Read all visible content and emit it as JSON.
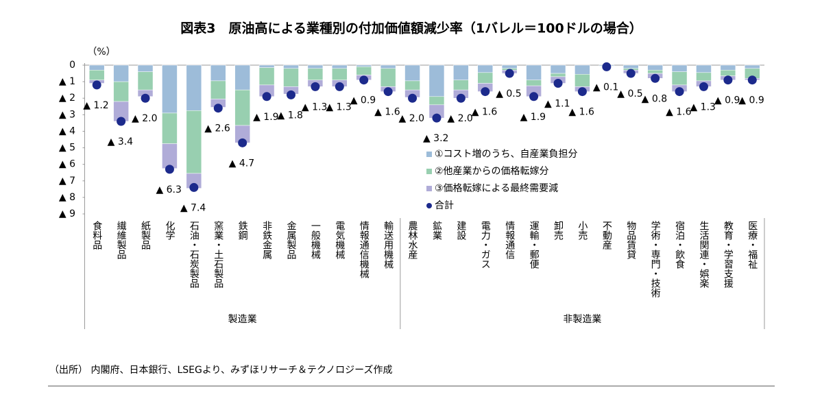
{
  "chart_data": {
    "type": "stacked_bar",
    "title": "図表3　原油高による業種別の付加価値額減少率（1バレル＝100ドルの場合）",
    "y_label": "（%）",
    "groups": [
      {
        "name": "製造業",
        "categories": [
          "食料品",
          "繊維製品",
          "紙製品",
          "化学",
          "石油・石炭製品",
          "窯業・土石製品",
          "鉄鋼",
          "非鉄金属",
          "金属製品",
          "一般機械",
          "電気機械",
          "情報通信機械",
          "輸送用機械"
        ]
      },
      {
        "name": "非製造業",
        "categories": [
          "農林水産",
          "鉱業",
          "建設",
          "電力・ガス",
          "情報通信",
          "運輸・郵便",
          "卸売",
          "小売",
          "不動産",
          "物品賃貸",
          "学術・専門・技術",
          "宿泊・飲食",
          "生活関連・娯楽",
          "教育・学習支援",
          "医療・福祉"
        ]
      }
    ],
    "series": [
      {
        "name": "①コスト増のうち、自産業負担分",
        "color": "#9dbcd9",
        "values": [
          -0.3,
          -1.0,
          -0.4,
          -2.9,
          -2.75,
          -0.95,
          -1.5,
          -0.15,
          -0.2,
          -0.2,
          -0.2,
          -0.1,
          -0.2,
          -0.95,
          -1.9,
          -0.9,
          -0.45,
          -0.2,
          -0.9,
          -0.5,
          -0.55,
          -0.05,
          -0.2,
          -0.3,
          -0.4,
          -0.45,
          -0.3,
          -0.2
        ]
      },
      {
        "name": "②他産業からの価格転嫁分",
        "color": "#98cfb0",
        "values": [
          -0.6,
          -1.2,
          -1.1,
          -1.85,
          -3.8,
          -1.1,
          -2.15,
          -1.05,
          -1.1,
          -0.7,
          -0.7,
          -0.5,
          -1.1,
          -0.55,
          -0.5,
          -0.6,
          -0.65,
          -0.1,
          -0.35,
          -0.2,
          -0.75,
          -0.03,
          -0.1,
          -0.2,
          -0.8,
          -0.5,
          -0.35,
          -0.6
        ]
      },
      {
        "name": "③価格転嫁による最終需要減",
        "color": "#b0acd8",
        "values": [
          -0.2,
          -1.2,
          -0.4,
          -1.5,
          -0.9,
          -0.5,
          -1.05,
          -0.7,
          -0.45,
          -0.4,
          -0.4,
          -0.3,
          -0.3,
          -0.45,
          -0.8,
          -0.5,
          -0.5,
          -0.2,
          -0.65,
          -0.4,
          -0.3,
          -0.02,
          -0.2,
          -0.3,
          -0.4,
          -0.35,
          -0.25,
          -0.1
        ]
      }
    ],
    "total": {
      "name": "合計",
      "color": "#1c2a8c",
      "values": [
        -1.2,
        -3.4,
        -2.0,
        -6.3,
        -7.4,
        -2.6,
        -4.7,
        -1.9,
        -1.8,
        -1.3,
        -1.3,
        -0.9,
        -1.6,
        -2.0,
        -3.2,
        -2.0,
        -1.6,
        -0.5,
        -1.9,
        -1.1,
        -1.6,
        -0.1,
        -0.5,
        -0.8,
        -1.6,
        -1.3,
        -0.9,
        -0.9
      ],
      "value_labels": [
        "▲ 1.2",
        "▲ 3.4",
        "▲ 2.0",
        "▲ 6.3",
        "▲ 7.4",
        "▲ 2.6",
        "▲ 4.7",
        "▲ 1.9",
        "▲ 1.8",
        "▲ 1.3",
        "▲ 1.3",
        "▲ 0.9",
        "▲ 1.6",
        "▲ 2.0",
        "▲ 3.2",
        "▲ 2.0",
        "▲ 1.6",
        "▲ 0.5",
        "▲ 1.9",
        "▲ 1.1",
        "▲ 1.6",
        "▲ 0.1",
        "▲ 0.5",
        "▲ 0.8",
        "▲ 1.6",
        "▲ 1.3",
        "▲ 0.9",
        "▲ 0.9"
      ]
    },
    "ylim": [
      -9,
      0
    ],
    "yticks": [
      0,
      {
        "value": -1,
        "label": "▲ 1"
      },
      {
        "value": -2,
        "label": "▲ 2"
      },
      {
        "value": -3,
        "label": "▲ 3"
      },
      {
        "value": -4,
        "label": "▲ 4"
      },
      {
        "value": -5,
        "label": "▲ 5"
      },
      {
        "value": -6,
        "label": "▲ 6"
      },
      {
        "value": -7,
        "label": "▲ 7"
      },
      {
        "value": -8,
        "label": "▲ 8"
      },
      {
        "value": -9,
        "label": "▲ 9"
      }
    ],
    "source": "（出所） 内閣府、日本銀行、LSEGより、みずほリサーチ＆テクノロジーズ作成"
  }
}
